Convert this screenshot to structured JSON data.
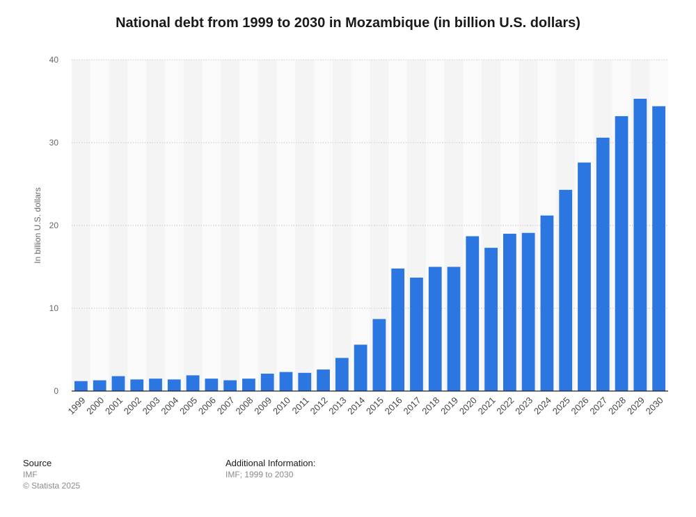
{
  "chart_data": {
    "type": "bar",
    "title": "National debt from 1999 to 2030 in Mozambique (in billion U.S. dollars)",
    "xlabel": "",
    "ylabel": "In billion U.S. dollars",
    "ylim": [
      0,
      40
    ],
    "yticks": [
      0,
      10,
      20,
      30,
      40
    ],
    "grid": true,
    "bar_color": "#2b76e0",
    "categories": [
      "1999",
      "2000",
      "2001",
      "2002",
      "2003",
      "2004",
      "2005",
      "2006",
      "2007",
      "2008",
      "2009",
      "2010",
      "2011",
      "2012",
      "2013",
      "2014",
      "2015",
      "2016",
      "2017",
      "2018",
      "2019",
      "2020",
      "2021",
      "2022",
      "2023",
      "2024",
      "2025",
      "2026",
      "2027",
      "2028",
      "2029",
      "2030"
    ],
    "values": [
      1.2,
      1.3,
      1.8,
      1.4,
      1.5,
      1.4,
      1.9,
      1.5,
      1.3,
      1.5,
      2.1,
      2.3,
      2.2,
      2.6,
      4.0,
      5.6,
      8.7,
      14.8,
      13.7,
      15.0,
      15.0,
      18.7,
      17.3,
      19.0,
      19.1,
      21.2,
      24.3,
      27.6,
      30.6,
      33.2,
      35.3,
      34.4
    ]
  },
  "footer": {
    "source_label": "Source",
    "source_value": "IMF",
    "copyright": "© Statista 2025",
    "additional_label": "Additional Information:",
    "additional_value": "IMF; 1999 to 2030"
  }
}
